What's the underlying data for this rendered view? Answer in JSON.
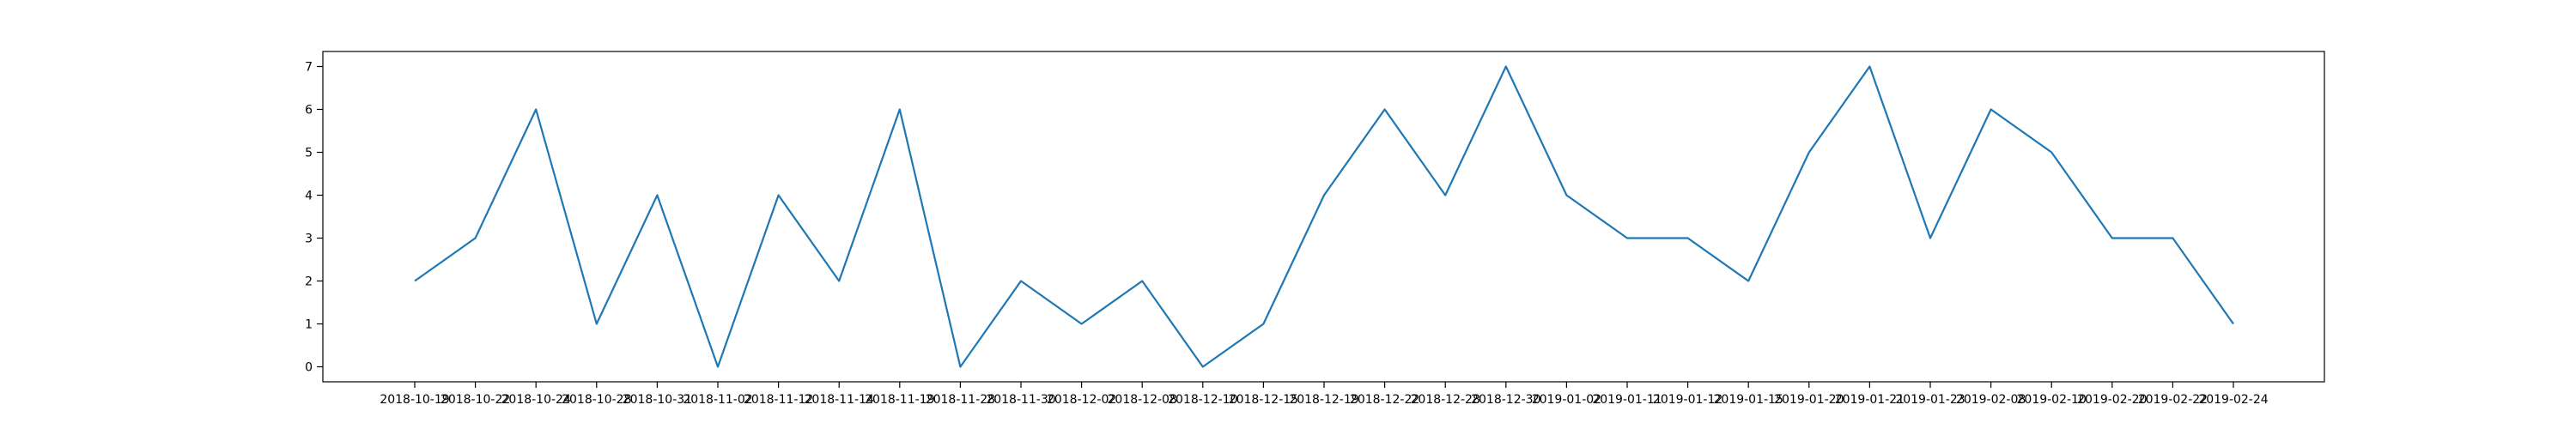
{
  "chart_data": {
    "type": "line",
    "title": "",
    "xlabel": "",
    "ylabel": "",
    "ylim": [
      -0.35,
      7.35
    ],
    "yticks": [
      0,
      1,
      2,
      3,
      4,
      5,
      6,
      7
    ],
    "grid": false,
    "legend": "none",
    "x": [
      "2018-10-19",
      "2018-10-22",
      "2018-10-24",
      "2018-10-28",
      "2018-10-31",
      "2018-11-02",
      "2018-11-12",
      "2018-11-14",
      "2018-11-19",
      "2018-11-28",
      "2018-11-30",
      "2018-12-02",
      "2018-12-08",
      "2018-12-10",
      "2018-12-15",
      "2018-12-19",
      "2018-12-22",
      "2018-12-28",
      "2018-12-30",
      "2019-01-02",
      "2019-01-11",
      "2019-01-12",
      "2019-01-15",
      "2019-01-20",
      "2019-01-21",
      "2019-01-23",
      "2019-02-08",
      "2019-02-10",
      "2019-02-20",
      "2019-02-22",
      "2019-02-24"
    ],
    "series": [
      {
        "color": "#1f77b4",
        "values": [
          2,
          3,
          6,
          1,
          4,
          0,
          4,
          2,
          6,
          0,
          2,
          1,
          2,
          0,
          1,
          4,
          6,
          4,
          7,
          4,
          3,
          3,
          2,
          5,
          7,
          3,
          6,
          5,
          3,
          3,
          1
        ]
      }
    ]
  }
}
